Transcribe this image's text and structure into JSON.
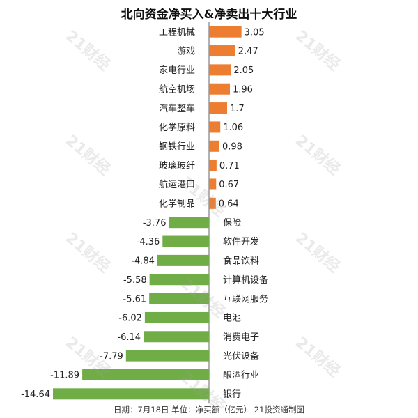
{
  "watermark": "21财经",
  "footer": "日期：7月18日 单位：净买额（亿元） 21投资通制图",
  "colors": {
    "positive": "#ed7d31",
    "negative": "#70ad47",
    "axis": "#666666",
    "text": "#222222"
  },
  "chart_data": {
    "type": "bar",
    "orientation": "horizontal",
    "title": "北向资金净买入&净卖出十大行业",
    "categories": [
      "工程机械",
      "游戏",
      "家电行业",
      "航空机场",
      "汽车整车",
      "化学原料",
      "钢铁行业",
      "玻璃玻纤",
      "航运港口",
      "化学制品",
      "保险",
      "软件开发",
      "食品饮料",
      "计算机设备",
      "互联网服务",
      "电池",
      "消费电子",
      "光伏设备",
      "酿酒行业",
      "银行"
    ],
    "values": [
      3.05,
      2.47,
      2.05,
      1.96,
      1.7,
      1.06,
      0.98,
      0.71,
      0.67,
      0.64,
      -3.76,
      -4.36,
      -4.84,
      -5.58,
      -5.61,
      -6.02,
      -6.14,
      -7.79,
      -11.89,
      -14.64
    ],
    "value_labels": [
      "3.05",
      "2.47",
      "2.05",
      "1.96",
      "1.7",
      "1.06",
      "0.98",
      "0.71",
      "0.67",
      "0.64",
      "-3.76",
      "-4.36",
      "-4.84",
      "-5.58",
      "-5.61",
      "-6.02",
      "-6.14",
      "-7.79",
      "-11.89",
      "-14.64"
    ],
    "xlim": [
      -14.64,
      3.05
    ],
    "grid": false,
    "legend": "none"
  }
}
